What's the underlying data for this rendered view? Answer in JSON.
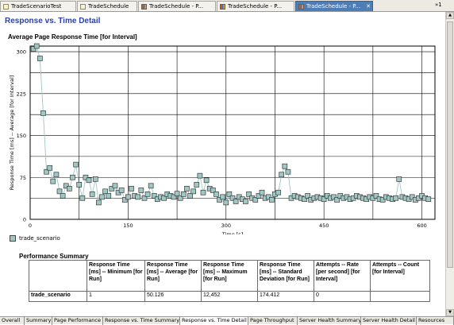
{
  "tabs": [
    {
      "label": "TradeScenarioTest",
      "icon": "doc",
      "active": false,
      "closable": false
    },
    {
      "label": "TradeSchedule",
      "icon": "doc",
      "active": false,
      "closable": false
    },
    {
      "label": "TradeSchedule - P...",
      "icon": "chart",
      "active": false,
      "closable": false
    },
    {
      "label": "TradeSchedule - P...",
      "icon": "chart",
      "active": false,
      "closable": false
    },
    {
      "label": "TradeSchedule - P...",
      "icon": "chart",
      "active": true,
      "closable": true
    }
  ],
  "tab_overflow": "»1",
  "section_title": "Response vs. Time Detail",
  "chart_title": "Average Page Response Time [for Interval]",
  "chart_data": {
    "type": "line",
    "title": "Average Page Response Time [for Interval]",
    "xlabel": "Time [s]",
    "ylabel": "Response Time [ms] -- Average [for Interval]",
    "xlim": [
      0,
      620
    ],
    "ylim": [
      0,
      310
    ],
    "xticks": [
      0,
      150,
      300,
      450,
      600
    ],
    "yticks": [
      0,
      75,
      150,
      225,
      300
    ],
    "grid": true,
    "legend_position": "bottom-left",
    "series": [
      {
        "name": "trade_scenario",
        "color": "#9fc7c4",
        "x": [
          5,
          10,
          15,
          20,
          25,
          30,
          35,
          40,
          45,
          50,
          55,
          60,
          65,
          70,
          75,
          80,
          85,
          90,
          95,
          100,
          105,
          110,
          115,
          120,
          125,
          130,
          135,
          140,
          145,
          150,
          155,
          160,
          165,
          170,
          175,
          180,
          185,
          190,
          195,
          200,
          205,
          210,
          215,
          220,
          225,
          230,
          235,
          240,
          245,
          250,
          255,
          260,
          265,
          270,
          275,
          280,
          285,
          290,
          295,
          300,
          305,
          310,
          315,
          320,
          325,
          330,
          335,
          340,
          345,
          350,
          355,
          360,
          365,
          370,
          375,
          380,
          385,
          390,
          395,
          400,
          405,
          410,
          415,
          420,
          425,
          430,
          435,
          440,
          445,
          450,
          455,
          460,
          465,
          470,
          475,
          480,
          485,
          490,
          495,
          500,
          505,
          510,
          515,
          520,
          525,
          530,
          535,
          540,
          545,
          550,
          555,
          560,
          565,
          570,
          575,
          580,
          585,
          590,
          595,
          600,
          605,
          610
        ],
        "y": [
          305,
          310,
          288,
          190,
          85,
          92,
          68,
          80,
          50,
          42,
          60,
          55,
          75,
          98,
          62,
          38,
          75,
          70,
          45,
          72,
          30,
          40,
          50,
          42,
          55,
          60,
          48,
          52,
          35,
          40,
          55,
          42,
          40,
          52,
          38,
          45,
          60,
          42,
          36,
          40,
          38,
          45,
          42,
          40,
          46,
          38,
          45,
          55,
          42,
          50,
          62,
          78,
          48,
          70,
          55,
          52,
          45,
          35,
          40,
          30,
          45,
          38,
          32,
          40,
          36,
          32,
          45,
          38,
          35,
          42,
          48,
          38,
          40,
          35,
          45,
          48,
          80,
          95,
          85,
          38,
          42,
          40,
          38,
          36,
          42,
          35,
          38,
          40,
          38,
          36,
          42,
          38,
          40,
          35,
          42,
          38,
          40,
          36,
          38,
          42,
          40,
          38,
          36,
          40,
          38,
          42,
          36,
          35,
          40,
          38,
          36,
          38,
          72,
          40,
          38,
          36,
          40,
          35,
          38,
          42,
          38,
          36
        ]
      }
    ]
  },
  "legend_label": "trade_scenario",
  "perf_title": "Performance Summary",
  "perf_table": {
    "headers": [
      "Response Time [ms] -- Minimum [for Run]",
      "Response Time [ms] -- Average [for Run]",
      "Response Time [ms] -- Maximum [for Run]",
      "Response Time [ms] -- Standard Deviation [for Run]",
      "Attempts -- Rate [per second] [for Interval]",
      "Attempts -- Count [for Interval]"
    ],
    "row": {
      "label": "trade_scenario",
      "values": [
        "1",
        "50.126",
        "12,452",
        "174.412",
        "0",
        ""
      ]
    }
  },
  "bottom_tabs": [
    {
      "label": "Overall",
      "active": false
    },
    {
      "label": "Summary",
      "active": false
    },
    {
      "label": "Page Performance",
      "active": false
    },
    {
      "label": "Response vs. Time Summary",
      "active": false
    },
    {
      "label": "Response vs. Time Detail",
      "active": true
    },
    {
      "label": "Page Throughput",
      "active": false
    },
    {
      "label": "Server Health Summary",
      "active": false
    },
    {
      "label": "Server Health Detail",
      "active": false
    },
    {
      "label": "Resources",
      "active": false
    }
  ]
}
